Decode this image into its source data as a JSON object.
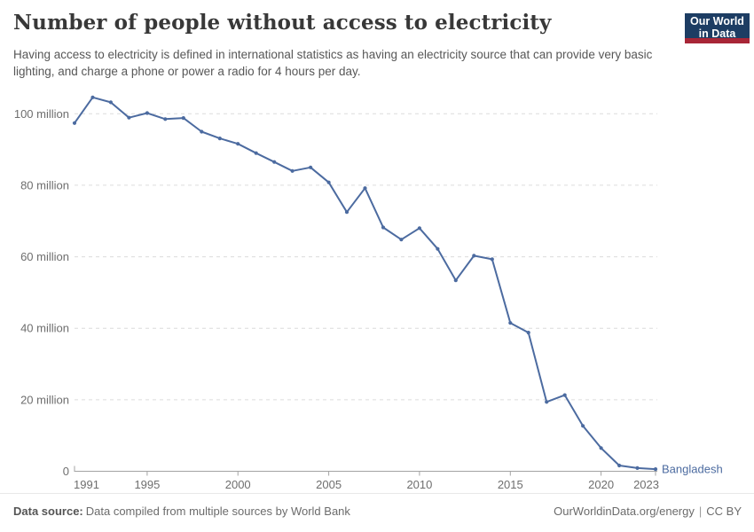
{
  "logo": {
    "line1": "Our World",
    "line2": "in Data",
    "bg_color": "#1d3d63",
    "accent_color": "#a82637"
  },
  "chart_data": {
    "type": "line",
    "title": "Number of people without access to electricity",
    "subtitle": "Having access to electricity is defined in international statistics as having an electricity source that can provide very basic lighting, and charge a phone or power a radio for 4 hours per day.",
    "unit": "million people",
    "x": [
      1991,
      1992,
      1993,
      1994,
      1995,
      1996,
      1997,
      1998,
      1999,
      2000,
      2001,
      2002,
      2003,
      2004,
      2005,
      2006,
      2007,
      2008,
      2009,
      2010,
      2011,
      2012,
      2013,
      2014,
      2015,
      2016,
      2017,
      2018,
      2019,
      2020,
      2021,
      2022,
      2023
    ],
    "series": [
      {
        "name": "Bangladesh",
        "color": "#4c6ba0",
        "values": [
          97.4,
          104.6,
          103.2,
          98.9,
          100.2,
          98.5,
          98.8,
          95.0,
          93.1,
          91.6,
          89.0,
          86.5,
          84.0,
          85.0,
          80.8,
          72.5,
          79.2,
          68.2,
          64.8,
          68.0,
          62.2,
          53.4,
          60.3,
          59.3,
          41.5,
          38.8,
          19.4,
          21.3,
          12.7,
          6.5,
          1.6,
          0.9,
          0.6
        ]
      }
    ],
    "xlim": [
      1991,
      2023
    ],
    "ylim": [
      0,
      100
    ],
    "x_ticks": [
      1991,
      1995,
      2000,
      2005,
      2010,
      2015,
      2020,
      2023
    ],
    "y_ticks": [
      {
        "v": 0,
        "label": "0"
      },
      {
        "v": 20,
        "label": "20 million"
      },
      {
        "v": 40,
        "label": "40 million"
      },
      {
        "v": 60,
        "label": "60 million"
      },
      {
        "v": 80,
        "label": "80 million"
      },
      {
        "v": 100,
        "label": "100 million"
      }
    ],
    "grid": "horizontal-dashed",
    "legend": "series-label-at-line-end"
  },
  "footer": {
    "datasource_label": "Data source:",
    "datasource_text": "Data compiled from multiple sources by World Bank",
    "url": "OurWorldinData.org/energy",
    "separator": "|",
    "license": "CC BY"
  }
}
